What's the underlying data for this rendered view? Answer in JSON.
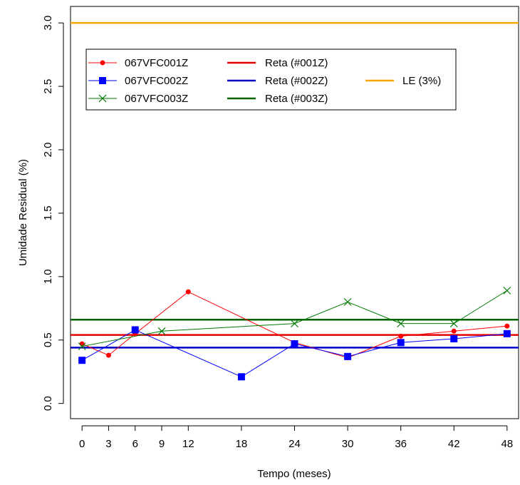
{
  "chart_data": {
    "type": "line",
    "xlabel": "Tempo (meses)",
    "ylabel": "Umidade Residual (%)",
    "xlim": [
      -1.3,
      49.3
    ],
    "ylim": [
      -0.12,
      3.13
    ],
    "x_ticks": [
      0,
      3,
      6,
      9,
      12,
      18,
      24,
      30,
      36,
      42,
      48
    ],
    "y_ticks": [
      0.0,
      0.5,
      1.0,
      1.5,
      2.0,
      2.5,
      3.0
    ],
    "y_tick_labels": [
      "0.0",
      "0.5",
      "1.0",
      "1.5",
      "2.0",
      "2.5",
      "3.0"
    ],
    "series": [
      {
        "name": "067VFC001Z",
        "color": "#ff0000",
        "marker": "circle",
        "x": [
          0,
          3,
          6,
          12,
          24,
          30,
          36,
          42,
          48
        ],
        "y": [
          0.47,
          0.38,
          0.55,
          0.88,
          0.48,
          0.36,
          0.53,
          0.57,
          0.61
        ]
      },
      {
        "name": "067VFC002Z",
        "color": "#0000ff",
        "marker": "square",
        "x": [
          0,
          6,
          18,
          24,
          30,
          36,
          42,
          48
        ],
        "y": [
          0.34,
          0.58,
          0.21,
          0.47,
          0.37,
          0.48,
          0.51,
          0.55
        ]
      },
      {
        "name": "067VFC003Z",
        "color": "#007a00",
        "marker": "x",
        "x": [
          0,
          9,
          24,
          30,
          36,
          42,
          48
        ],
        "y": [
          0.45,
          0.57,
          0.63,
          0.8,
          0.63,
          0.63,
          0.89
        ]
      }
    ],
    "reference_lines": [
      {
        "name": "Reta (#001Z)",
        "color": "#e60000",
        "y": 0.54
      },
      {
        "name": "Reta (#002Z)",
        "color": "#0000cc",
        "y": 0.44
      },
      {
        "name": "Reta (#003Z)",
        "color": "#006400",
        "y": 0.66
      },
      {
        "name": "LE (3%)",
        "color": "#ffa500",
        "y": 3.0
      }
    ],
    "legend_position": "top-left"
  }
}
